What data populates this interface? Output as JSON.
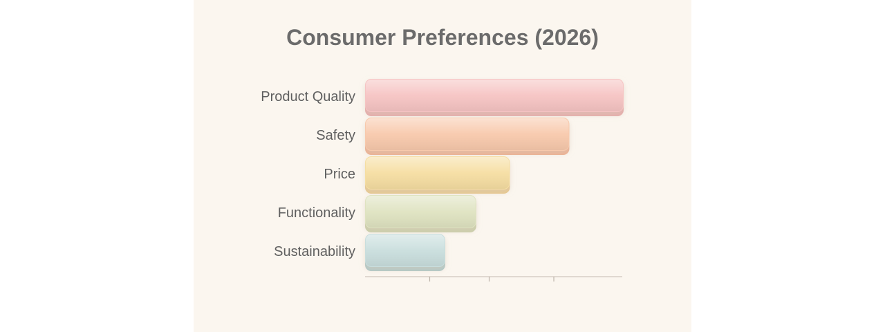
{
  "chart_data": {
    "type": "bar",
    "orientation": "horizontal",
    "title": "Consumer Preferences (2026)",
    "categories": [
      "Product Quality",
      "Safety",
      "Price",
      "Functionality",
      "Sustainability"
    ],
    "values": [
      100,
      79,
      56,
      43,
      31
    ],
    "xlim": [
      0,
      100
    ],
    "xticks": [
      25,
      48,
      73
    ],
    "grid": false,
    "legend": "none",
    "colors": [
      "#f6c4c3",
      "#f8c9ac",
      "#f6dea2",
      "#dfe3c1",
      "#c9dedd"
    ],
    "shadow_colors": [
      "#e7a9a9",
      "#eeae8e",
      "#e8c88b",
      "#c9cfa8",
      "#adc8c7"
    ]
  }
}
